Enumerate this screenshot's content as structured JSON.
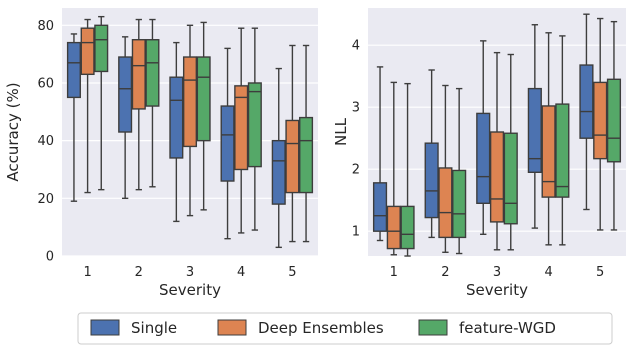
{
  "colors": {
    "panel_bg": "#EAEAF2",
    "grid": "#FFFFFF",
    "box_edge": "#3D3D3D",
    "text": "#262626",
    "series": [
      "#4C72B0",
      "#DD8452",
      "#55A868"
    ]
  },
  "legend": {
    "placement": "bottom-center"
  },
  "chart_data": [
    {
      "type": "box",
      "xlabel": "Severity",
      "ylabel": "Accuracy (%)",
      "categories": [
        "1",
        "2",
        "3",
        "4",
        "5"
      ],
      "ylim": [
        0,
        86
      ],
      "yticks": [
        0,
        20,
        40,
        60,
        80
      ],
      "grid": true,
      "series": [
        {
          "name": "Single",
          "boxes": [
            {
              "whislo": 19,
              "q1": 55,
              "med": 67,
              "q3": 74,
              "whishi": 77
            },
            {
              "whislo": 20,
              "q1": 43,
              "med": 58,
              "q3": 69,
              "whishi": 76
            },
            {
              "whislo": 12,
              "q1": 34,
              "med": 54,
              "q3": 62,
              "whishi": 74
            },
            {
              "whislo": 6,
              "q1": 26,
              "med": 42,
              "q3": 52,
              "whishi": 72
            },
            {
              "whislo": 3,
              "q1": 18,
              "med": 33,
              "q3": 40,
              "whishi": 65
            }
          ]
        },
        {
          "name": "Deep Ensembles",
          "boxes": [
            {
              "whislo": 22,
              "q1": 63,
              "med": 74,
              "q3": 79,
              "whishi": 82
            },
            {
              "whislo": 23,
              "q1": 51,
              "med": 66,
              "q3": 75,
              "whishi": 82
            },
            {
              "whislo": 14,
              "q1": 38,
              "med": 61,
              "q3": 69,
              "whishi": 80
            },
            {
              "whislo": 8,
              "q1": 30,
              "med": 55,
              "q3": 59,
              "whishi": 79
            },
            {
              "whislo": 5,
              "q1": 22,
              "med": 39,
              "q3": 47,
              "whishi": 73
            }
          ]
        },
        {
          "name": "feature-WGD",
          "boxes": [
            {
              "whislo": 23,
              "q1": 64,
              "med": 75,
              "q3": 80,
              "whishi": 83
            },
            {
              "whislo": 24,
              "q1": 52,
              "med": 67,
              "q3": 75,
              "whishi": 82
            },
            {
              "whislo": 16,
              "q1": 40,
              "med": 62,
              "q3": 69,
              "whishi": 81
            },
            {
              "whislo": 9,
              "q1": 31,
              "med": 57,
              "q3": 60,
              "whishi": 79
            },
            {
              "whislo": 5,
              "q1": 22,
              "med": 40,
              "q3": 48,
              "whishi": 73
            }
          ]
        }
      ]
    },
    {
      "type": "box",
      "xlabel": "Severity",
      "ylabel": "NLL",
      "categories": [
        "1",
        "2",
        "3",
        "4",
        "5"
      ],
      "ylim": [
        0.6,
        4.6
      ],
      "yticks": [
        1,
        2,
        3,
        4
      ],
      "grid": true,
      "series": [
        {
          "name": "Single",
          "boxes": [
            {
              "whislo": 0.85,
              "q1": 1.0,
              "med": 1.25,
              "q3": 1.78,
              "whishi": 3.65
            },
            {
              "whislo": 0.9,
              "q1": 1.22,
              "med": 1.65,
              "q3": 2.42,
              "whishi": 3.6
            },
            {
              "whislo": 0.95,
              "q1": 1.45,
              "med": 1.88,
              "q3": 2.9,
              "whishi": 4.07
            },
            {
              "whislo": 1.05,
              "q1": 1.95,
              "med": 2.17,
              "q3": 3.3,
              "whishi": 4.33
            },
            {
              "whislo": 1.35,
              "q1": 2.5,
              "med": 2.93,
              "q3": 3.68,
              "whishi": 4.5
            }
          ]
        },
        {
          "name": "Deep Ensembles",
          "boxes": [
            {
              "whislo": 0.62,
              "q1": 0.72,
              "med": 1.0,
              "q3": 1.4,
              "whishi": 3.4
            },
            {
              "whislo": 0.66,
              "q1": 0.9,
              "med": 1.3,
              "q3": 2.02,
              "whishi": 3.35
            },
            {
              "whislo": 0.7,
              "q1": 1.15,
              "med": 1.52,
              "q3": 2.6,
              "whishi": 3.88
            },
            {
              "whislo": 0.78,
              "q1": 1.55,
              "med": 1.8,
              "q3": 3.02,
              "whishi": 4.2
            },
            {
              "whislo": 1.02,
              "q1": 2.17,
              "med": 2.55,
              "q3": 3.4,
              "whishi": 4.43
            }
          ]
        },
        {
          "name": "feature-WGD",
          "boxes": [
            {
              "whislo": 0.6,
              "q1": 0.72,
              "med": 0.95,
              "q3": 1.4,
              "whishi": 3.38
            },
            {
              "whislo": 0.64,
              "q1": 0.9,
              "med": 1.28,
              "q3": 1.98,
              "whishi": 3.3
            },
            {
              "whislo": 0.7,
              "q1": 1.12,
              "med": 1.45,
              "q3": 2.58,
              "whishi": 3.85
            },
            {
              "whislo": 0.78,
              "q1": 1.55,
              "med": 1.72,
              "q3": 3.05,
              "whishi": 4.15
            },
            {
              "whislo": 1.02,
              "q1": 2.12,
              "med": 2.5,
              "q3": 3.45,
              "whishi": 4.38
            }
          ]
        }
      ]
    }
  ]
}
